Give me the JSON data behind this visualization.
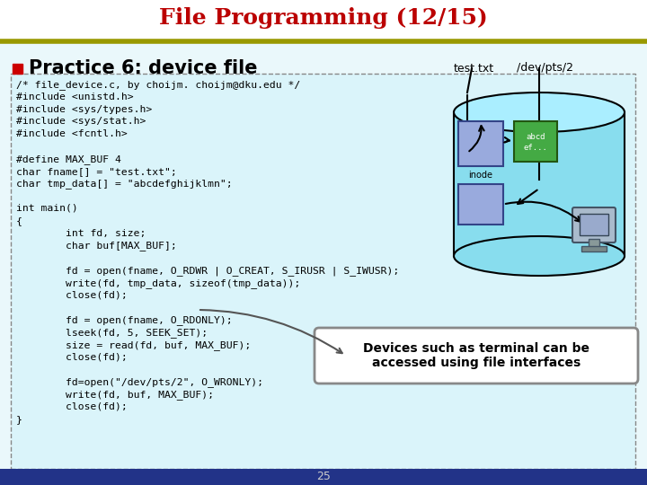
{
  "title": "File Programming (12/15)",
  "title_color": "#bb0000",
  "separator_color": "#999900",
  "practice_title": "Practice 6: device file",
  "label_test_txt": "test.txt",
  "label_dev_pts": "/dev/pts/2",
  "code_lines": [
    "/* file_device.c, by choijm. choijm@dku.edu */",
    "#include <unistd.h>",
    "#include <sys/types.h>",
    "#include <sys/stat.h>",
    "#include <fcntl.h>",
    "",
    "#define MAX_BUF 4",
    "char fname[] = \"test.txt\";",
    "char tmp_data[] = \"abcdefghijklmn\";",
    "",
    "int main()",
    "{",
    "        int fd, size;",
    "        char buf[MAX_BUF];",
    "",
    "        fd = open(fname, O_RDWR | O_CREAT, S_IRUSR | S_IWUSR);",
    "        write(fd, tmp_data, sizeof(tmp_data));",
    "        close(fd);",
    "",
    "        fd = open(fname, O_RDONLY);",
    "        lseek(fd, 5, SEEK_SET);",
    "        size = read(fd, buf, MAX_BUF);",
    "        close(fd);",
    "",
    "        fd=open(\"/dev/pts/2\", O_WRONLY);",
    "        write(fd, buf, MAX_BUF);",
    "        close(fd);",
    "}"
  ],
  "page_num": "25",
  "annotation_text": "Devices such as terminal can be\naccessed using file interfaces",
  "bg_color": "#ffffff",
  "slide_bg": "#eaf8fb",
  "code_bg": "#daf4fa",
  "cylinder_fill": "#88ddee",
  "cylinder_top": "#aaeeff",
  "inode_color": "#99aadd",
  "data_block_color": "#44aa44",
  "bullet_color": "#cc0000",
  "bottom_bar_color": "#223388"
}
